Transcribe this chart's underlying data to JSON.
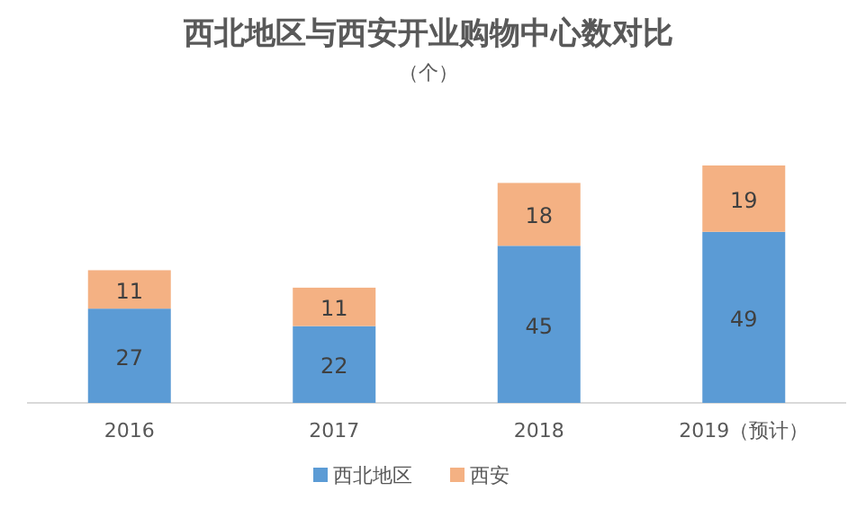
{
  "chart_data": {
    "type": "bar",
    "title": "西北地区与西安开业购物中心数对比",
    "subtitle": "（个）",
    "categories": [
      "2016",
      "2017",
      "2018",
      "2019（预计）"
    ],
    "stacked": true,
    "data_labels": true,
    "legend": "bottom",
    "series": [
      {
        "name": "西北地区",
        "color": "#5b9bd5",
        "values": [
          27,
          22,
          45,
          49
        ]
      },
      {
        "name": "西安",
        "color": "#f4b183",
        "values": [
          11,
          11,
          18,
          19
        ]
      }
    ]
  }
}
